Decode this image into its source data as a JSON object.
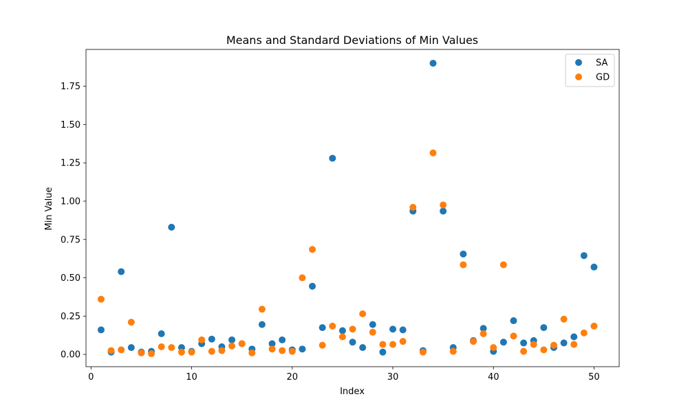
{
  "chart_data": {
    "type": "scatter",
    "title": "Means and Standard Deviations of Min Values",
    "xlabel": "Index",
    "ylabel": "Min Value",
    "xlim": [
      -0.5,
      52.5
    ],
    "ylim": [
      -0.08,
      1.99
    ],
    "xticks": [
      0,
      10,
      20,
      30,
      40,
      50
    ],
    "yticks": [
      0.0,
      0.25,
      0.5,
      0.75,
      1.0,
      1.25,
      1.5,
      1.75
    ],
    "ytick_labels": [
      "0.00",
      "0.25",
      "0.50",
      "0.75",
      "1.00",
      "1.25",
      "1.50",
      "1.75"
    ],
    "legend_position": "top-right",
    "grid": false,
    "x": [
      1,
      2,
      3,
      4,
      5,
      6,
      7,
      8,
      9,
      10,
      11,
      12,
      13,
      14,
      15,
      16,
      17,
      18,
      19,
      20,
      21,
      22,
      23,
      24,
      25,
      26,
      27,
      28,
      29,
      30,
      31,
      32,
      33,
      34,
      35,
      36,
      37,
      38,
      39,
      40,
      41,
      42,
      43,
      44,
      45,
      46,
      47,
      48,
      49,
      50
    ],
    "series": [
      {
        "name": "SA",
        "color": "#1f77b4",
        "values": [
          0.16,
          0.015,
          0.54,
          0.045,
          0.015,
          0.02,
          0.135,
          0.83,
          0.045,
          0.02,
          0.07,
          0.1,
          0.05,
          0.095,
          0.07,
          0.035,
          0.195,
          0.07,
          0.095,
          0.03,
          0.035,
          0.445,
          0.175,
          1.28,
          0.155,
          0.08,
          0.045,
          0.195,
          0.015,
          0.165,
          0.16,
          0.935,
          0.025,
          1.9,
          0.935,
          0.045,
          0.655,
          0.09,
          0.17,
          0.02,
          0.08,
          0.22,
          0.075,
          0.09,
          0.175,
          0.045,
          0.075,
          0.115,
          0.645,
          0.57
        ]
      },
      {
        "name": "GD",
        "color": "#ff7f0e",
        "values": [
          0.36,
          0.025,
          0.03,
          0.21,
          0.01,
          0.005,
          0.05,
          0.045,
          0.015,
          0.015,
          0.095,
          0.02,
          0.025,
          0.055,
          0.07,
          0.01,
          0.295,
          0.035,
          0.025,
          0.02,
          0.5,
          0.685,
          0.06,
          0.185,
          0.115,
          0.165,
          0.265,
          0.145,
          0.065,
          0.065,
          0.085,
          0.96,
          0.015,
          1.315,
          0.975,
          0.02,
          0.585,
          0.085,
          0.135,
          0.045,
          0.585,
          0.12,
          0.02,
          0.065,
          0.03,
          0.06,
          0.23,
          0.065,
          0.14,
          0.185
        ]
      }
    ]
  }
}
